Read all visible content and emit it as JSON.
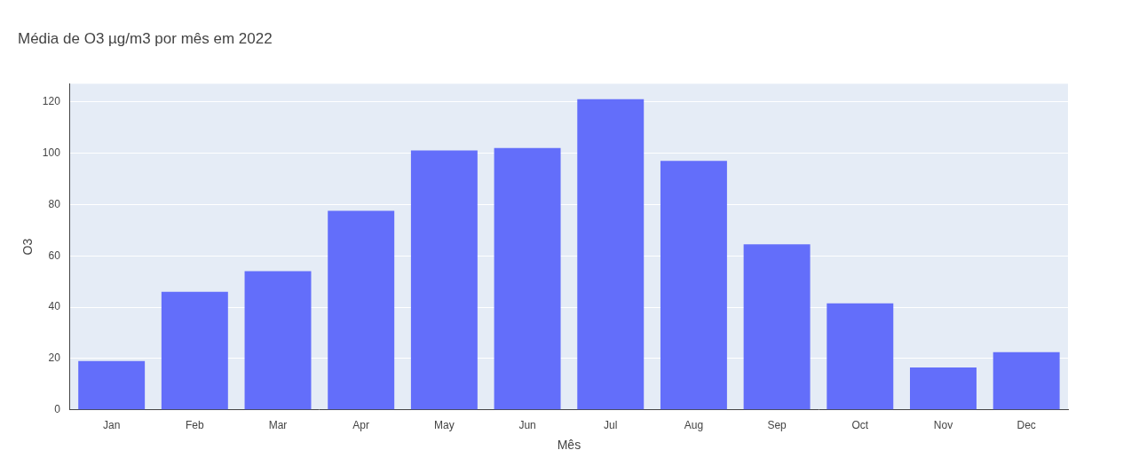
{
  "chart_data": {
    "type": "bar",
    "title": "Média de O3 µg/m3 por mês em 2022",
    "x_label": "Mês",
    "y_label": "O3",
    "categories": [
      "Jan",
      "Feb",
      "Mar",
      "Apr",
      "May",
      "Jun",
      "Jul",
      "Aug",
      "Sep",
      "Oct",
      "Nov",
      "Dec"
    ],
    "values": [
      19,
      46,
      54,
      77.5,
      101,
      102,
      121,
      97,
      64.5,
      41.5,
      16.5,
      22.5
    ],
    "color": "#636efa",
    "ylim": [
      0,
      127
    ],
    "yticks": [
      0,
      20,
      40,
      60,
      80,
      100,
      120
    ],
    "grid": true
  }
}
